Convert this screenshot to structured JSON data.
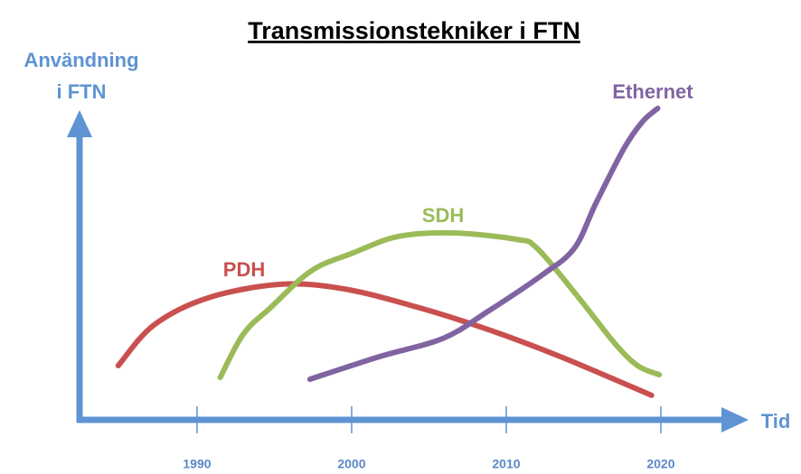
{
  "chart_data": {
    "type": "line",
    "title": "Transmissionstekniker i FTN",
    "y_label": [
      "Användning",
      "i FTN"
    ],
    "x_label": "Tid",
    "xlim": [
      1982.4,
      2025.5
    ],
    "ylim": [
      0,
      100
    ],
    "xticks": [
      1990,
      2000,
      2010,
      2020
    ],
    "series": [
      {
        "name": "PDH",
        "color": "#c9504f",
        "x": [
          1984.9,
          1987.2,
          1990.7,
          1995.4,
          1999.5,
          2004.2,
          2008.8,
          2013.5,
          2019.4
        ],
        "values": [
          17.9,
          31.3,
          40.3,
          44.8,
          43.3,
          37.3,
          29.9,
          20.9,
          8.1
        ]
      },
      {
        "name": "SDH",
        "color": "#9bbb59",
        "x": [
          1991.5,
          1993.0,
          1994.8,
          1997.4,
          2000.1,
          2003.0,
          2006.5,
          2010.6,
          2012.0,
          2014.7,
          2017.0,
          2018.5,
          2019.9
        ],
        "values": [
          14.0,
          28.4,
          37.3,
          49.3,
          55.2,
          60.6,
          61.8,
          59.7,
          56.7,
          40.3,
          25.4,
          17.9,
          14.9
        ]
      },
      {
        "name": "Ethernet",
        "color": "#8064a2",
        "x": [
          1997.3,
          2001.8,
          2005.9,
          2008.8,
          2012.3,
          2014.4,
          2015.8,
          2017.6,
          2018.8,
          2019.8
        ],
        "values": [
          13.4,
          20.9,
          26.9,
          35.8,
          47.8,
          56.7,
          71.6,
          89.6,
          98.5,
          103.0
        ]
      }
    ]
  }
}
